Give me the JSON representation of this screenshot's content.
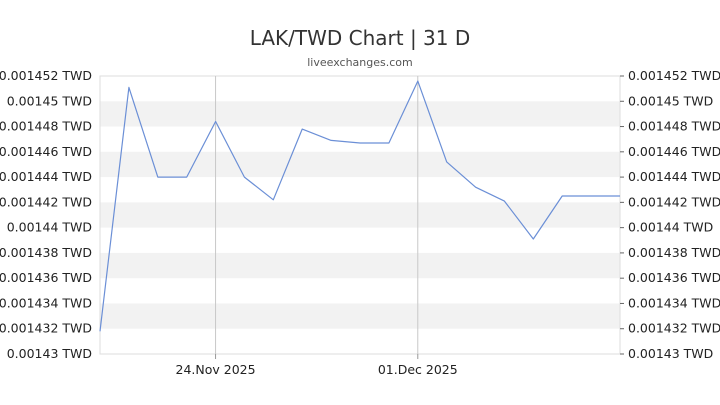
{
  "title": "LAK/TWD Chart | 31 D",
  "subtitle": "liveexchanges.com",
  "chart_data": {
    "type": "line",
    "title": "LAK/TWD Chart | 31 D",
    "ylim": [
      0.00143,
      0.001452
    ],
    "y_ticks": [
      0.001452,
      0.00145,
      0.001448,
      0.001446,
      0.001444,
      0.001442,
      0.00144,
      0.001438,
      0.001436,
      0.001434,
      0.001432,
      0.00143
    ],
    "y_tick_labels": [
      "0.001452 TWD",
      "0.00145 TWD",
      "0.001448 TWD",
      "0.001446 TWD",
      "0.001444 TWD",
      "0.001442 TWD",
      "0.00144 TWD",
      "0.001438 TWD",
      "0.001436 TWD",
      "0.001434 TWD",
      "0.001432 TWD",
      "0.00143 TWD"
    ],
    "x_ticks": [
      {
        "label": "24.Nov 2025",
        "index": 4
      },
      {
        "label": "01.Dec 2025",
        "index": 11
      }
    ],
    "series": [
      {
        "color": "#6b8fd6",
        "values": [
          0.0014318,
          0.0014511,
          0.001444,
          0.001444,
          0.0014484,
          0.001444,
          0.0014422,
          0.0014478,
          0.0014469,
          0.0014467,
          0.0014467,
          0.0014516,
          0.0014452,
          0.0014432,
          0.0014421,
          0.0014391,
          0.0014425,
          0.0014425,
          0.0014425
        ]
      }
    ],
    "grid": true,
    "stripes": true
  }
}
